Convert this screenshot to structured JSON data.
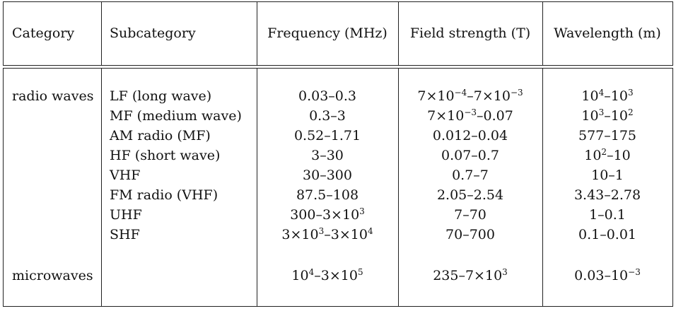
{
  "table": {
    "headers": [
      "Category",
      "Subcategory",
      "Frequency (MHz)",
      "Field strength (T)",
      "Wavelength (m)"
    ],
    "rows": [
      {
        "category": "radio waves",
        "subcategory": "LF (long wave)",
        "frequency": "0.03–0.3",
        "field": "7×10^−4–7×10^−3",
        "wavelength": "10^4–10^3"
      },
      {
        "category": "",
        "subcategory": "MF (medium wave)",
        "frequency": "0.3–3",
        "field": "7×10^−3–0.07",
        "wavelength": "10^3–10^2"
      },
      {
        "category": "",
        "subcategory": "AM radio (MF)",
        "frequency": "0.52–1.71",
        "field": "0.012–0.04",
        "wavelength": "577–175"
      },
      {
        "category": "",
        "subcategory": "HF (short wave)",
        "frequency": "3–30",
        "field": "0.07–0.7",
        "wavelength": "10^2–10"
      },
      {
        "category": "",
        "subcategory": "VHF",
        "frequency": "30–300",
        "field": "0.7–7",
        "wavelength": "10–1"
      },
      {
        "category": "",
        "subcategory": "FM radio (VHF)",
        "frequency": "87.5–108",
        "field": "2.05–2.54",
        "wavelength": "3.43–2.78"
      },
      {
        "category": "",
        "subcategory": "UHF",
        "frequency": "300–3×10^3",
        "field": "7–70",
        "wavelength": "1–0.1"
      },
      {
        "category": "",
        "subcategory": "SHF",
        "frequency": "3×10^3–3×10^4",
        "field": "70–700",
        "wavelength": "0.1–0.01"
      },
      {
        "category": "microwaves",
        "subcategory": "",
        "frequency": "10^4–3×10^5",
        "field": "235–7×10^3",
        "wavelength": "0.03–10^−3"
      }
    ]
  }
}
